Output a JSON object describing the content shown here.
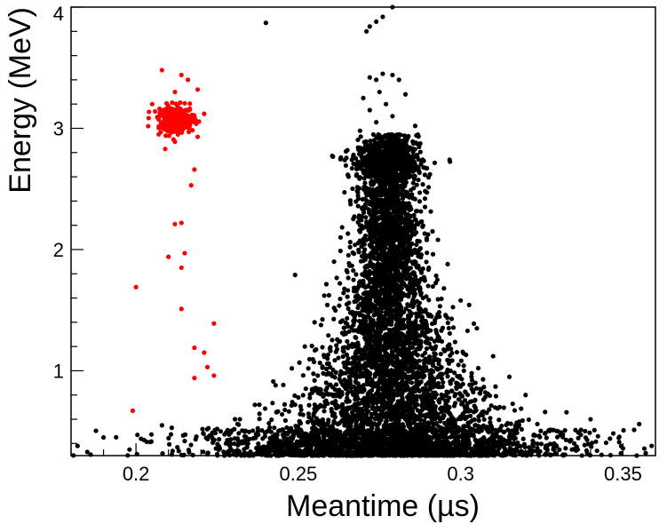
{
  "chart_data": {
    "type": "scatter",
    "title": "",
    "xlabel": "Meantime (µs)",
    "ylabel": "Energy (MeV)",
    "xlim": [
      0.18,
      0.36
    ],
    "ylim": [
      0.3,
      4.0
    ],
    "x_ticks": [
      0.2,
      0.25,
      0.3,
      0.35
    ],
    "x_tick_labels": [
      "0.2",
      "0.25",
      "0.3",
      "0.35"
    ],
    "y_ticks": [
      1,
      2,
      3,
      4
    ],
    "y_tick_labels": [
      "1",
      "2",
      "3",
      "4"
    ],
    "grid": false,
    "legend": "none",
    "series": [
      {
        "color": "#000000",
        "cluster_summary": "dense band centred near meantime 0.278 µs, wide at low energy and narrowing upward, with a cap near 2.7 MeV",
        "points": [
          [
            0.24,
            3.87
          ],
          [
            0.279,
            4.0
          ],
          [
            0.276,
            3.92
          ],
          [
            0.274,
            3.88
          ],
          [
            0.272,
            3.84
          ],
          [
            0.271,
            3.8
          ],
          [
            0.276,
            3.45
          ],
          [
            0.272,
            3.42
          ],
          [
            0.274,
            3.4
          ],
          [
            0.279,
            3.44
          ],
          [
            0.281,
            3.4
          ],
          [
            0.275,
            3.3
          ],
          [
            0.27,
            3.25
          ],
          [
            0.283,
            3.28
          ],
          [
            0.277,
            3.2
          ],
          [
            0.272,
            3.15
          ],
          [
            0.279,
            3.1
          ],
          [
            0.274,
            3.05
          ],
          [
            0.286,
            3.02
          ],
          [
            0.269,
            2.98
          ],
          [
            0.281,
            2.95
          ],
          [
            0.276,
            2.9
          ],
          [
            0.271,
            2.85
          ],
          [
            0.284,
            2.82
          ],
          [
            0.273,
            2.78
          ],
          [
            0.278,
            2.75
          ],
          [
            0.27,
            2.72
          ],
          [
            0.282,
            2.7
          ],
          [
            0.275,
            2.68
          ],
          [
            0.287,
            2.65
          ],
          [
            0.268,
            2.62
          ],
          [
            0.279,
            2.6
          ],
          [
            0.283,
            2.55
          ],
          [
            0.272,
            2.5
          ],
          [
            0.277,
            2.45
          ],
          [
            0.289,
            2.42
          ],
          [
            0.266,
            2.4
          ],
          [
            0.281,
            2.35
          ],
          [
            0.274,
            2.3
          ],
          [
            0.286,
            2.25
          ],
          [
            0.269,
            2.2
          ],
          [
            0.279,
            2.15
          ],
          [
            0.263,
            2.1
          ],
          [
            0.293,
            2.08
          ],
          [
            0.276,
            2.05
          ],
          [
            0.283,
            2.0
          ],
          [
            0.271,
            1.95
          ],
          [
            0.261,
            1.9
          ],
          [
            0.296,
            1.88
          ],
          [
            0.278,
            1.85
          ],
          [
            0.285,
            1.8
          ],
          [
            0.249,
            1.79
          ],
          [
            0.267,
            1.75
          ],
          [
            0.29,
            1.7
          ],
          [
            0.274,
            1.65
          ],
          [
            0.258,
            1.62
          ],
          [
            0.3,
            1.58
          ],
          [
            0.281,
            1.55
          ],
          [
            0.27,
            1.5
          ],
          [
            0.293,
            1.45
          ],
          [
            0.255,
            1.4
          ],
          [
            0.277,
            1.38
          ],
          [
            0.305,
            1.35
          ],
          [
            0.264,
            1.3
          ],
          [
            0.287,
            1.25
          ],
          [
            0.252,
            1.2
          ],
          [
            0.297,
            1.18
          ],
          [
            0.275,
            1.15
          ],
          [
            0.31,
            1.12
          ],
          [
            0.259,
            1.1
          ],
          [
            0.283,
            1.05
          ],
          [
            0.248,
            1.02
          ],
          [
            0.301,
            1.0
          ],
          [
            0.27,
            0.98
          ],
          [
            0.315,
            0.95
          ],
          [
            0.255,
            0.92
          ],
          [
            0.29,
            0.9
          ],
          [
            0.243,
            0.88
          ],
          [
            0.306,
            0.85
          ],
          [
            0.278,
            0.82
          ],
          [
            0.32,
            0.8
          ],
          [
            0.25,
            0.78
          ],
          [
            0.296,
            0.75
          ],
          [
            0.238,
            0.72
          ],
          [
            0.312,
            0.7
          ],
          [
            0.265,
            0.68
          ],
          [
            0.326,
            0.66
          ],
          [
            0.245,
            0.64
          ],
          [
            0.302,
            0.62
          ],
          [
            0.232,
            0.6
          ],
          [
            0.318,
            0.58
          ],
          [
            0.355,
            0.56
          ],
          [
            0.34,
            0.6
          ],
          [
            0.208,
            0.55
          ],
          [
            0.225,
            0.52
          ],
          [
            0.33,
            0.5
          ],
          [
            0.19,
            0.45
          ],
          [
            0.346,
            0.44
          ],
          [
            0.215,
            0.42
          ],
          [
            0.335,
            0.4
          ],
          [
            0.182,
            0.38
          ],
          [
            0.35,
            0.36
          ],
          [
            0.198,
            0.35
          ],
          [
            0.342,
            0.34
          ],
          [
            0.185,
            0.33
          ],
          [
            0.357,
            0.32
          ]
        ]
      },
      {
        "color": "#ff0000",
        "cluster_summary": "tight cluster at meantime ≈ 0.212 µs, energy ≈ 3.07 MeV, with a sparse tail toward lower energy",
        "points": [
          [
            0.208,
            3.48
          ],
          [
            0.214,
            3.44
          ],
          [
            0.216,
            3.4
          ],
          [
            0.219,
            3.32
          ],
          [
            0.212,
            3.3
          ],
          [
            0.205,
            3.2
          ],
          [
            0.221,
            3.12
          ],
          [
            0.209,
            3.15
          ],
          [
            0.215,
            3.05
          ],
          [
            0.21,
            3.0
          ],
          [
            0.207,
            2.95
          ],
          [
            0.219,
            2.93
          ],
          [
            0.212,
            2.89
          ],
          [
            0.209,
            2.83
          ],
          [
            0.218,
            2.66
          ],
          [
            0.217,
            2.53
          ],
          [
            0.214,
            2.22
          ],
          [
            0.212,
            2.21
          ],
          [
            0.215,
            1.97
          ],
          [
            0.21,
            1.94
          ],
          [
            0.214,
            1.85
          ],
          [
            0.2,
            1.69
          ],
          [
            0.214,
            1.51
          ],
          [
            0.224,
            1.39
          ],
          [
            0.218,
            1.19
          ],
          [
            0.221,
            1.15
          ],
          [
            0.222,
            1.03
          ],
          [
            0.224,
            0.96
          ],
          [
            0.218,
            0.94
          ],
          [
            0.199,
            0.67
          ]
        ]
      }
    ]
  }
}
